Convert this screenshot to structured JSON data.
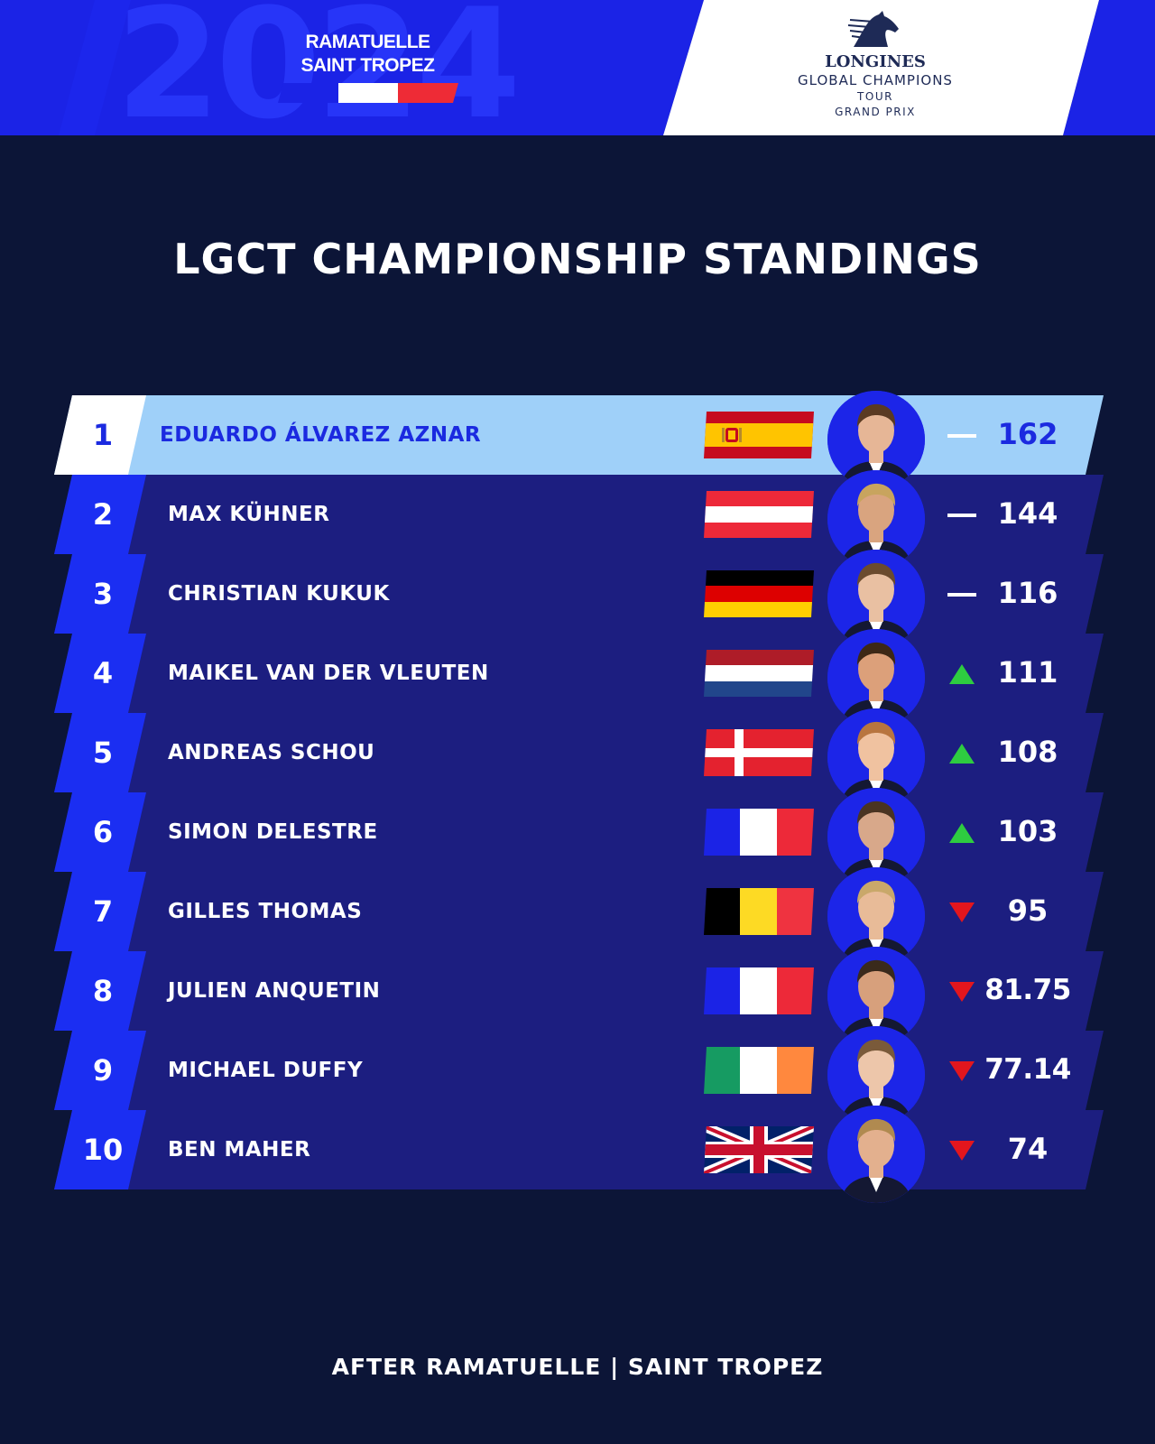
{
  "header": {
    "year": "2024",
    "event_lines": [
      "RAMATUELLE",
      "SAINT TROPEZ"
    ],
    "event_flag_colors": [
      "#1b23e6",
      "#ffffff",
      "#ee2b36"
    ],
    "logo": {
      "brand": "LONGINES",
      "line1": "GLOBAL CHAMPIONS",
      "line2": "TOUR",
      "line3": "GRAND PRIX",
      "icon": "horse-head-icon"
    }
  },
  "title": "LGCT CHAMPIONSHIP STANDINGS",
  "colors": {
    "background": "#0c1537",
    "row": "#1c1e80",
    "rank_cell": "#1b2ef2",
    "leader_row": "#9fd0f9",
    "leader_text": "#1b2ae0",
    "up": "#2ecc40",
    "down": "#e3161d"
  },
  "standings": [
    {
      "rank": "1",
      "name": "EDUARDO ÁLVAREZ AZNAR",
      "country": "spain",
      "trend": "same",
      "points": "162"
    },
    {
      "rank": "2",
      "name": "MAX KÜHNER",
      "country": "austria",
      "trend": "same",
      "points": "144"
    },
    {
      "rank": "3",
      "name": "CHRISTIAN KUKUK",
      "country": "germany",
      "trend": "same",
      "points": "116"
    },
    {
      "rank": "4",
      "name": "MAIKEL VAN DER VLEUTEN",
      "country": "netherlands",
      "trend": "up",
      "points": "111"
    },
    {
      "rank": "5",
      "name": "ANDREAS SCHOU",
      "country": "denmark",
      "trend": "up",
      "points": "108"
    },
    {
      "rank": "6",
      "name": "SIMON DELESTRE",
      "country": "france",
      "trend": "up",
      "points": "103"
    },
    {
      "rank": "7",
      "name": "GILLES THOMAS",
      "country": "belgium",
      "trend": "down",
      "points": "95"
    },
    {
      "rank": "8",
      "name": "JULIEN ANQUETIN",
      "country": "france",
      "trend": "down",
      "points": "81.75"
    },
    {
      "rank": "9",
      "name": "MICHAEL DUFFY",
      "country": "ireland",
      "trend": "down",
      "points": "77.14"
    },
    {
      "rank": "10",
      "name": "BEN MAHER",
      "country": "great-britain",
      "trend": "down",
      "points": "74"
    }
  ],
  "footer": "AFTER RAMATUELLE | SAINT TROPEZ"
}
